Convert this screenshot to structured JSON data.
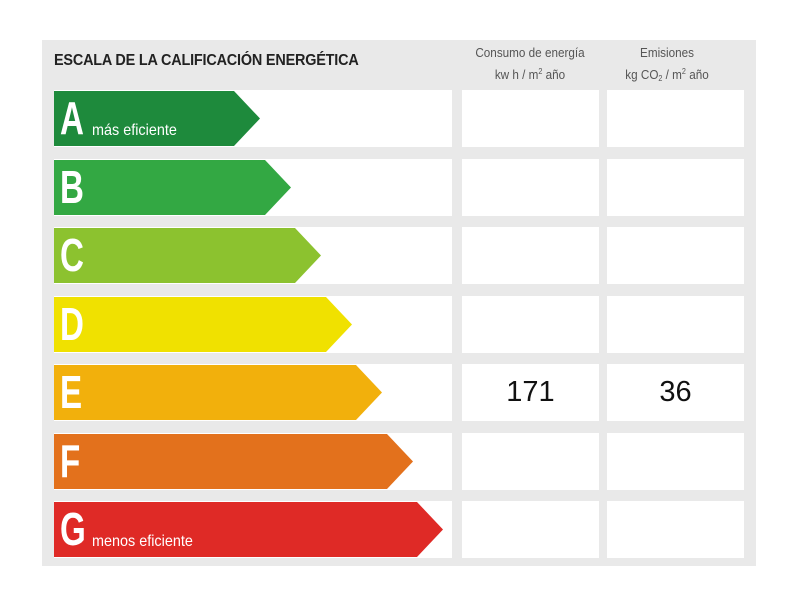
{
  "title": "ESCALA DE LA CALIFICACIÓN ENERGÉTICA",
  "columns": {
    "consumo": {
      "line1": "Consumo de energía",
      "line2_pre": "kw h / m",
      "line2_sup": "2",
      "line2_post": " año"
    },
    "emisiones": {
      "line1": "Emisiones",
      "line2_pre": "kg CO",
      "line2_sub": "2",
      "line2_mid": " / m",
      "line2_sup": "2",
      "line2_post": " año"
    }
  },
  "ratings": [
    {
      "letter": "A",
      "text": "más eficiente",
      "color": "#1e8a3c",
      "consumo": "",
      "emisiones": ""
    },
    {
      "letter": "B",
      "text": "",
      "color": "#33a843",
      "consumo": "",
      "emisiones": ""
    },
    {
      "letter": "C",
      "text": "",
      "color": "#8cc22f",
      "consumo": "",
      "emisiones": ""
    },
    {
      "letter": "D",
      "text": "",
      "color": "#f0e100",
      "consumo": "",
      "emisiones": ""
    },
    {
      "letter": "E",
      "text": "",
      "color": "#f2b00c",
      "consumo": "171",
      "emisiones": "36"
    },
    {
      "letter": "F",
      "text": "",
      "color": "#e3711c",
      "consumo": "",
      "emisiones": ""
    },
    {
      "letter": "G",
      "text": "menos eficiente",
      "color": "#df2a26",
      "consumo": "",
      "emisiones": ""
    }
  ]
}
